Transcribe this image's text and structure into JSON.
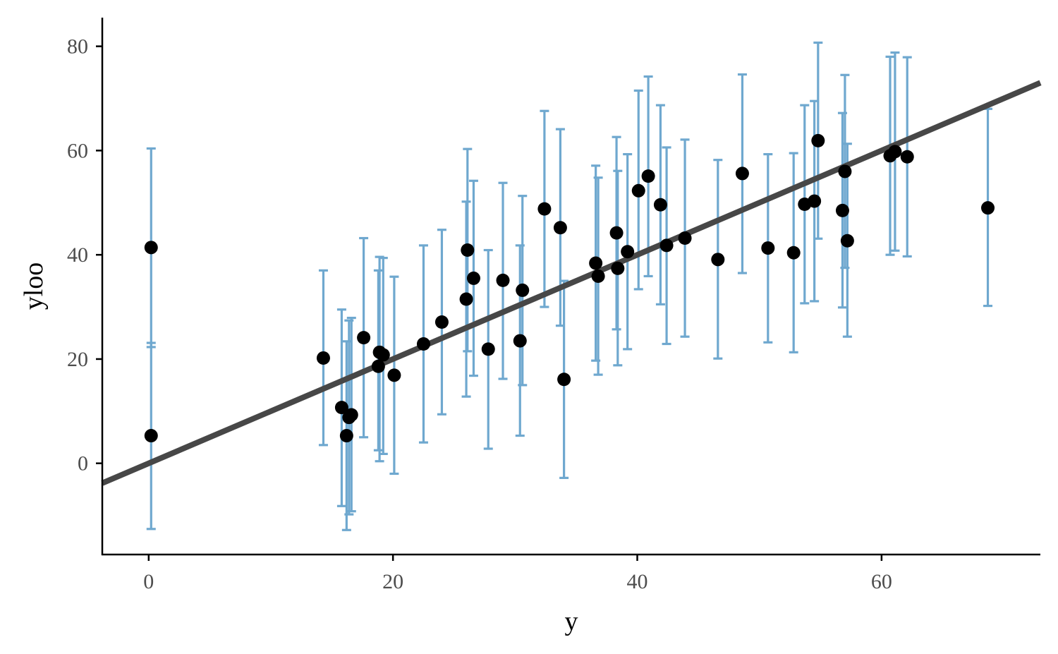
{
  "chart_data": {
    "type": "scatter",
    "xlabel": "y",
    "ylabel": "yloo",
    "xlim": [
      -3.8,
      73
    ],
    "ylim": [
      -17.5,
      85.5
    ],
    "xticks": [
      0,
      20,
      40,
      60
    ],
    "yticks": [
      0,
      20,
      40,
      60,
      80
    ],
    "grid": false,
    "legend": "none",
    "colors": {
      "errorbar": "#6fa8cf",
      "point": "#000000",
      "line": "#474747",
      "axis": "#000000",
      "tick_text": "#4d4d4d"
    },
    "reference_line": {
      "slope": 1,
      "intercept": 0
    },
    "points": [
      {
        "y": 0.2,
        "yloo": 41.4,
        "lo": 22.3,
        "hi": 60.4
      },
      {
        "y": 0.2,
        "yloo": 5.3,
        "lo": -12.6,
        "hi": 23.1
      },
      {
        "y": 14.3,
        "yloo": 20.2,
        "lo": 3.5,
        "hi": 37.0
      },
      {
        "y": 15.8,
        "yloo": 10.7,
        "lo": -8.2,
        "hi": 29.5
      },
      {
        "y": 16.2,
        "yloo": 5.3,
        "lo": -12.8,
        "hi": 23.4
      },
      {
        "y": 16.4,
        "yloo": 8.8,
        "lo": -9.8,
        "hi": 27.4
      },
      {
        "y": 16.6,
        "yloo": 9.3,
        "lo": -9.2,
        "hi": 27.9
      },
      {
        "y": 17.6,
        "yloo": 24.1,
        "lo": 5.0,
        "hi": 43.2
      },
      {
        "y": 18.8,
        "yloo": 18.6,
        "lo": 2.5,
        "hi": 37.0
      },
      {
        "y": 18.9,
        "yloo": 21.3,
        "lo": 0.4,
        "hi": 39.6
      },
      {
        "y": 19.2,
        "yloo": 20.8,
        "lo": 1.8,
        "hi": 39.4
      },
      {
        "y": 20.1,
        "yloo": 16.9,
        "lo": -2.0,
        "hi": 35.8
      },
      {
        "y": 22.5,
        "yloo": 22.9,
        "lo": 4.0,
        "hi": 41.8
      },
      {
        "y": 24.0,
        "yloo": 27.1,
        "lo": 9.4,
        "hi": 44.8
      },
      {
        "y": 26.0,
        "yloo": 31.5,
        "lo": 12.8,
        "hi": 50.2
      },
      {
        "y": 26.1,
        "yloo": 40.9,
        "lo": 21.5,
        "hi": 60.3
      },
      {
        "y": 26.6,
        "yloo": 35.5,
        "lo": 16.8,
        "hi": 54.2
      },
      {
        "y": 27.8,
        "yloo": 21.9,
        "lo": 2.8,
        "hi": 40.9
      },
      {
        "y": 29.0,
        "yloo": 35.1,
        "lo": 16.2,
        "hi": 53.8
      },
      {
        "y": 30.4,
        "yloo": 23.5,
        "lo": 5.3,
        "hi": 41.8
      },
      {
        "y": 30.6,
        "yloo": 33.2,
        "lo": 15.0,
        "hi": 51.3
      },
      {
        "y": 32.4,
        "yloo": 48.8,
        "lo": 30.0,
        "hi": 67.6
      },
      {
        "y": 33.7,
        "yloo": 45.2,
        "lo": 26.4,
        "hi": 64.1
      },
      {
        "y": 34.0,
        "yloo": 16.1,
        "lo": -2.8,
        "hi": 35.0
      },
      {
        "y": 36.6,
        "yloo": 38.4,
        "lo": 19.7,
        "hi": 57.1
      },
      {
        "y": 36.8,
        "yloo": 35.9,
        "lo": 17.0,
        "hi": 54.8
      },
      {
        "y": 38.3,
        "yloo": 44.2,
        "lo": 25.7,
        "hi": 62.6
      },
      {
        "y": 38.4,
        "yloo": 37.4,
        "lo": 18.8,
        "hi": 56.1
      },
      {
        "y": 39.2,
        "yloo": 40.6,
        "lo": 21.9,
        "hi": 59.3
      },
      {
        "y": 40.1,
        "yloo": 52.3,
        "lo": 33.4,
        "hi": 71.5
      },
      {
        "y": 40.9,
        "yloo": 55.1,
        "lo": 35.9,
        "hi": 74.2
      },
      {
        "y": 41.9,
        "yloo": 49.6,
        "lo": 30.5,
        "hi": 68.7
      },
      {
        "y": 42.4,
        "yloo": 41.8,
        "lo": 22.9,
        "hi": 60.6
      },
      {
        "y": 43.9,
        "yloo": 43.2,
        "lo": 24.3,
        "hi": 62.1
      },
      {
        "y": 46.6,
        "yloo": 39.1,
        "lo": 20.1,
        "hi": 58.2
      },
      {
        "y": 48.6,
        "yloo": 55.6,
        "lo": 36.5,
        "hi": 74.6
      },
      {
        "y": 50.7,
        "yloo": 41.3,
        "lo": 23.2,
        "hi": 59.3
      },
      {
        "y": 52.8,
        "yloo": 40.4,
        "lo": 21.3,
        "hi": 59.5
      },
      {
        "y": 53.7,
        "yloo": 49.7,
        "lo": 30.7,
        "hi": 68.7
      },
      {
        "y": 54.5,
        "yloo": 50.3,
        "lo": 31.1,
        "hi": 69.5
      },
      {
        "y": 54.8,
        "yloo": 61.9,
        "lo": 43.1,
        "hi": 80.7
      },
      {
        "y": 56.8,
        "yloo": 48.5,
        "lo": 29.9,
        "hi": 67.2
      },
      {
        "y": 57.0,
        "yloo": 56.0,
        "lo": 37.5,
        "hi": 74.5
      },
      {
        "y": 57.2,
        "yloo": 42.7,
        "lo": 24.3,
        "hi": 61.3
      },
      {
        "y": 60.7,
        "yloo": 59.0,
        "lo": 40.0,
        "hi": 78.0
      },
      {
        "y": 61.1,
        "yloo": 59.8,
        "lo": 40.8,
        "hi": 78.8
      },
      {
        "y": 62.1,
        "yloo": 58.8,
        "lo": 39.7,
        "hi": 77.9
      },
      {
        "y": 68.7,
        "yloo": 49.0,
        "lo": 30.2,
        "hi": 68.0
      }
    ]
  }
}
